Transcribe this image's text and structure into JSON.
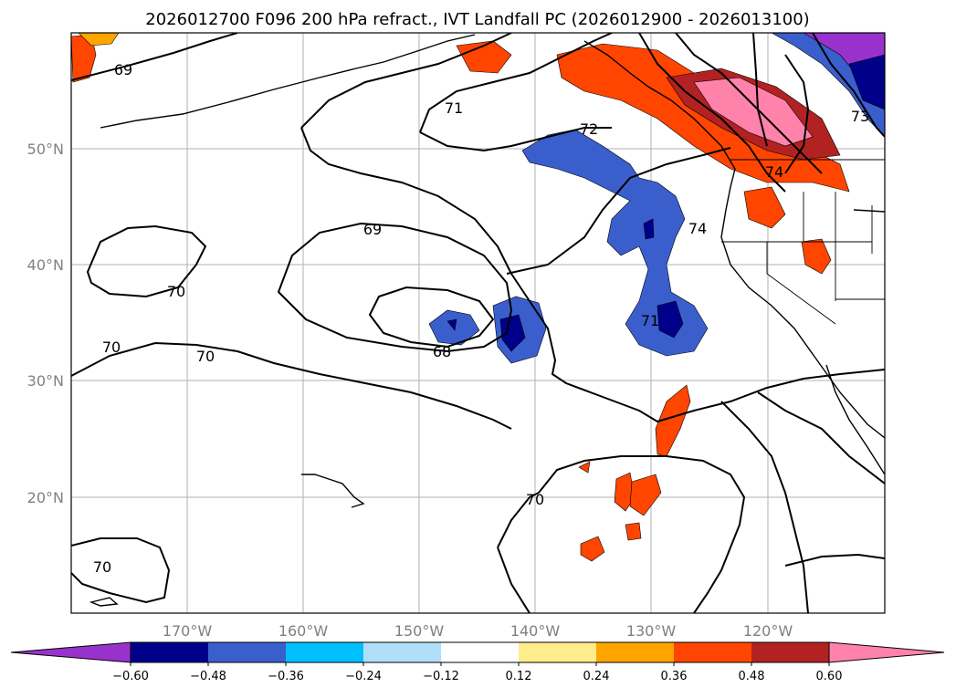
{
  "title": "2026012700 F096 200 hPa refract., IVT Landfall PC (2026012900 - 2026013100)",
  "map": {
    "lat_labels": [
      "50°N",
      "40°N",
      "30°N",
      "20°N"
    ],
    "lon_labels": [
      "170°W",
      "160°W",
      "150°W",
      "140°W",
      "130°W",
      "120°W"
    ],
    "contour_labels": [
      "69",
      "71",
      "72",
      "69",
      "70",
      "70",
      "70",
      "68",
      "74",
      "74",
      "73",
      "71",
      "70",
      "70"
    ]
  },
  "colorbar": {
    "ticks": [
      "−0.60",
      "−0.48",
      "−0.36",
      "−0.24",
      "−0.12",
      "0.12",
      "0.24",
      "0.36",
      "0.48",
      "0.60"
    ],
    "colors": [
      "#9932cc",
      "#00008b",
      "#3a5fcd",
      "#00bfff",
      "#b0e0f8",
      "#ffffff",
      "#ffec8b",
      "#ffa500",
      "#ff4500",
      "#b22222",
      "#ff82ab"
    ]
  }
}
